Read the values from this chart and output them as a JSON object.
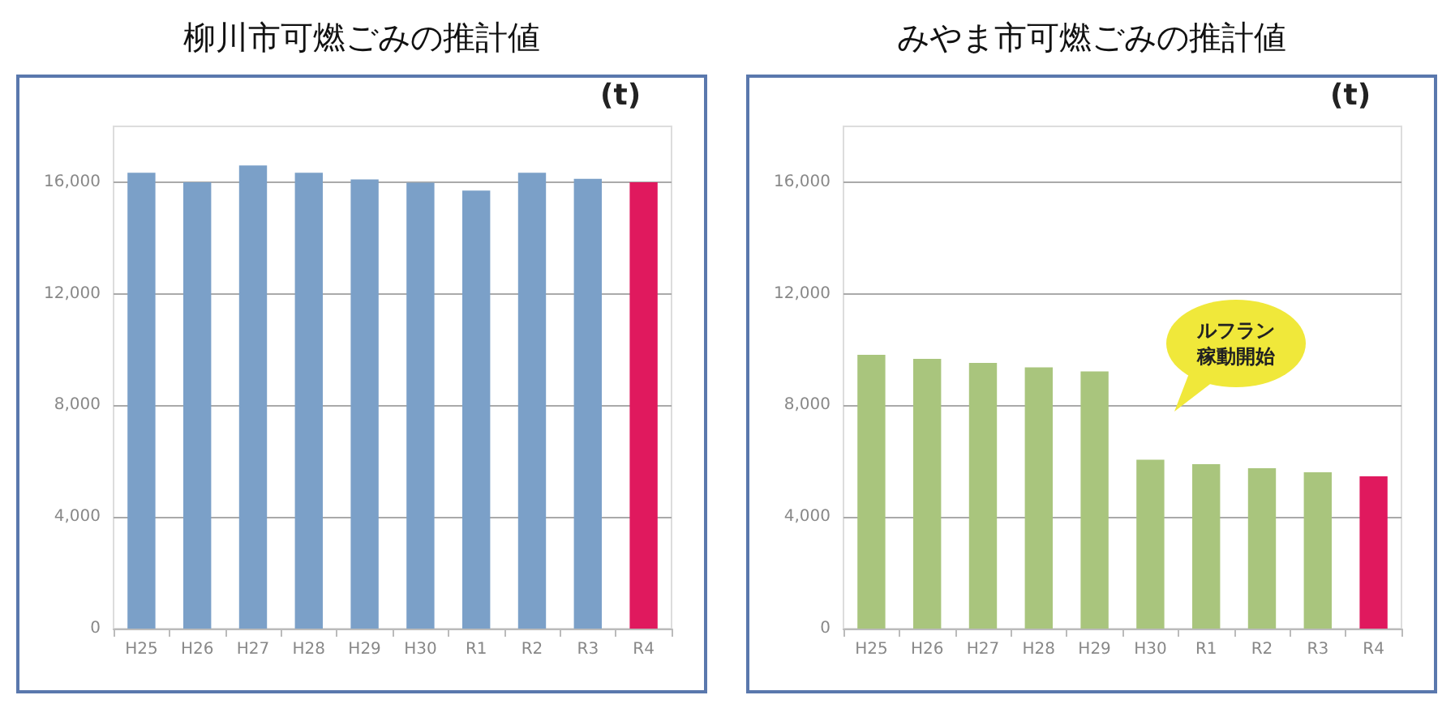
{
  "chart_data": [
    {
      "type": "bar",
      "title": "柳川市可燃ごみの推計値",
      "ylabel": "(t)",
      "categories": [
        "H25",
        "H26",
        "H27",
        "H28",
        "H29",
        "H30",
        "R1",
        "R2",
        "R3",
        "R4"
      ],
      "series": [
        {
          "colors": [
            "#7ba0c8",
            "#7ba0c8",
            "#7ba0c8",
            "#7ba0c8",
            "#7ba0c8",
            "#7ba0c8",
            "#7ba0c8",
            "#7ba0c8",
            "#7ba0c8",
            "#e0195e"
          ],
          "values": [
            16340,
            16000,
            16600,
            16340,
            16100,
            15980,
            15700,
            16340,
            16120,
            16000
          ]
        }
      ],
      "ylim": [
        0,
        18000
      ],
      "yticks": [
        0,
        {
          "value": 4000,
          "label": "4,000"
        },
        {
          "value": 8000,
          "label": "8,000"
        },
        {
          "value": 12000,
          "label": "12,000"
        },
        {
          "value": 16000,
          "label": "16,000"
        }
      ],
      "grid": "y"
    },
    {
      "type": "bar",
      "title": "みやま市可燃ごみの推計値",
      "ylabel": "(t)",
      "categories": [
        "H25",
        "H26",
        "H27",
        "H28",
        "H29",
        "H30",
        "R1",
        "R2",
        "R3",
        "R4"
      ],
      "series": [
        {
          "colors": [
            "#a9c57d",
            "#a9c57d",
            "#a9c57d",
            "#a9c57d",
            "#a9c57d",
            "#a9c57d",
            "#a9c57d",
            "#a9c57d",
            "#a9c57d",
            "#e0195e"
          ],
          "values": [
            9810,
            9670,
            9520,
            9360,
            9220,
            6050,
            5890,
            5750,
            5600,
            5460
          ]
        }
      ],
      "ylim": [
        0,
        18000
      ],
      "yticks": [
        0,
        {
          "value": 4000,
          "label": "4,000"
        },
        {
          "value": 8000,
          "label": "8,000"
        },
        {
          "value": 12000,
          "label": "12,000"
        },
        {
          "value": 16000,
          "label": "16,000"
        }
      ],
      "grid": "y",
      "annotations": [
        "ルフラン稼動開始"
      ]
    }
  ]
}
